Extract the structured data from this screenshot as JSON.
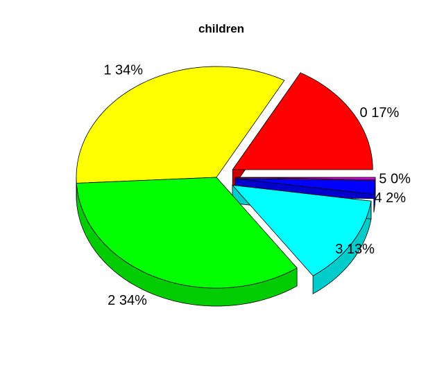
{
  "chart_data": {
    "type": "pie",
    "style": "3d-exploded",
    "title": "children",
    "categories": [
      "0",
      "1",
      "2",
      "3",
      "4",
      "5"
    ],
    "values": [
      17,
      34,
      34,
      13,
      2,
      0.3
    ],
    "labels": [
      "0 17%",
      "1 34%",
      "2 34%",
      "3 13%",
      "4 2%",
      "5 0%"
    ],
    "colors": [
      "#FF0000",
      "#FFFF00",
      "#00FF00",
      "#00FFFF",
      "#0000FF",
      "#FF00FF"
    ],
    "side_colors": [
      "#CC0000",
      "#CCCC00",
      "#00CC00",
      "#00CCCC",
      "#0000CC",
      "#CC00CC"
    ],
    "exploded": [
      "0",
      "3",
      "4",
      "5"
    ]
  }
}
